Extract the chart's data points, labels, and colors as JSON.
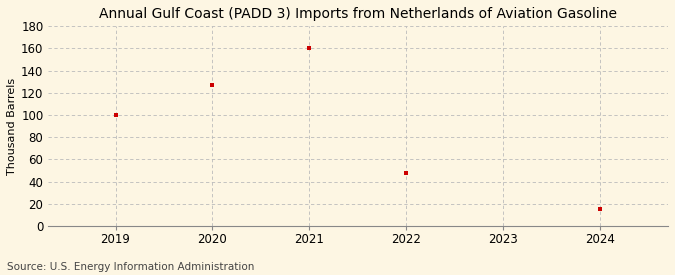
{
  "title": "Annual Gulf Coast (PADD 3) Imports from Netherlands of Aviation Gasoline",
  "ylabel": "Thousand Barrels",
  "source": "Source: U.S. Energy Information Administration",
  "x_values": [
    2019,
    2020,
    2021,
    2022,
    2024
  ],
  "y_values": [
    100,
    127,
    160,
    48,
    15
  ],
  "marker_color": "#cc0000",
  "marker_shape": "s",
  "marker_size": 3.5,
  "background_color": "#fdf6e3",
  "grid_color": "#bbbbbb",
  "xlim": [
    2018.3,
    2024.7
  ],
  "ylim": [
    0,
    180
  ],
  "yticks": [
    0,
    20,
    40,
    60,
    80,
    100,
    120,
    140,
    160,
    180
  ],
  "xticks": [
    2019,
    2020,
    2021,
    2022,
    2023,
    2024
  ],
  "title_fontsize": 10,
  "label_fontsize": 8,
  "tick_fontsize": 8.5,
  "source_fontsize": 7.5
}
